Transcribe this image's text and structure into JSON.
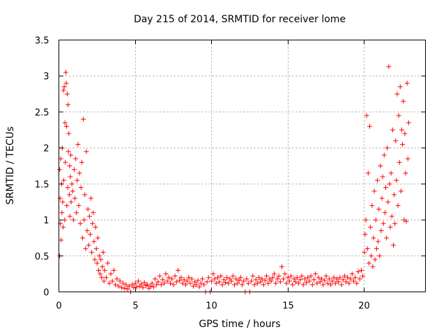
{
  "chart_data": {
    "type": "scatter",
    "title": "Day 215 of 2014, SRMTID for receiver lome",
    "xlabel": "GPS time / hours",
    "ylabel": "SRMTID / TECUs",
    "xlim": [
      0,
      24
    ],
    "ylim": [
      0,
      3.5
    ],
    "xticks": [
      0,
      5,
      10,
      15,
      20
    ],
    "xtick_labels": [
      "0",
      "5",
      "10",
      "15",
      "20"
    ],
    "yticks": [
      0,
      0.5,
      1,
      1.5,
      2,
      2.5,
      3,
      3.5
    ],
    "ytick_labels": [
      "0",
      "0.5",
      "1",
      "1.5",
      "2",
      "2.5",
      "3",
      "3.5"
    ],
    "grid": true,
    "marker": "+",
    "marker_color": "#ff0000",
    "series": [
      {
        "name": "SRMTID",
        "points": [
          [
            0.05,
            1.7
          ],
          [
            0.05,
            0.5
          ],
          [
            0.08,
            1.3
          ],
          [
            0.1,
            0.95
          ],
          [
            0.12,
            1.85
          ],
          [
            0.15,
            0.72
          ],
          [
            0.18,
            1.5
          ],
          [
            0.2,
            1.1
          ],
          [
            0.22,
            2.0
          ],
          [
            0.25,
            1.25
          ],
          [
            0.28,
            0.9
          ],
          [
            0.3,
            2.8
          ],
          [
            0.32,
            1.55
          ],
          [
            0.35,
            2.85
          ],
          [
            0.38,
            1.0
          ],
          [
            0.4,
            2.35
          ],
          [
            0.42,
            1.8
          ],
          [
            0.45,
            3.05
          ],
          [
            0.48,
            2.9
          ],
          [
            0.5,
            2.3
          ],
          [
            0.52,
            1.2
          ],
          [
            0.55,
            2.75
          ],
          [
            0.58,
            1.45
          ],
          [
            0.6,
            2.6
          ],
          [
            0.62,
            1.95
          ],
          [
            0.65,
            2.2
          ],
          [
            0.68,
            1.35
          ],
          [
            0.7,
            1.75
          ],
          [
            0.72,
            1.05
          ],
          [
            0.75,
            1.6
          ],
          [
            0.78,
            1.9
          ],
          [
            0.8,
            1.25
          ],
          [
            0.85,
            1.5
          ],
          [
            0.9,
            1.4
          ],
          [
            0.95,
            1.0
          ],
          [
            1.0,
            1.7
          ],
          [
            1.05,
            1.3
          ],
          [
            1.1,
            1.85
          ],
          [
            1.15,
            1.1
          ],
          [
            1.2,
            1.55
          ],
          [
            1.25,
            2.05
          ],
          [
            1.3,
            1.2
          ],
          [
            1.35,
            1.65
          ],
          [
            1.4,
            0.95
          ],
          [
            1.45,
            1.45
          ],
          [
            1.5,
            1.8
          ],
          [
            1.55,
            0.75
          ],
          [
            1.6,
            2.4
          ],
          [
            1.65,
            1.0
          ],
          [
            1.7,
            1.35
          ],
          [
            1.75,
            0.6
          ],
          [
            1.8,
            1.95
          ],
          [
            1.85,
            0.85
          ],
          [
            1.9,
            1.15
          ],
          [
            1.95,
            0.65
          ],
          [
            2.0,
            1.05
          ],
          [
            2.05,
            0.8
          ],
          [
            2.1,
            1.3
          ],
          [
            2.15,
            0.55
          ],
          [
            2.2,
            0.95
          ],
          [
            2.25,
            1.1
          ],
          [
            2.3,
            0.7
          ],
          [
            2.35,
            0.45
          ],
          [
            2.4,
            0.9
          ],
          [
            2.45,
            0.6
          ],
          [
            2.5,
            0.4
          ],
          [
            2.55,
            0.75
          ],
          [
            2.6,
            0.3
          ],
          [
            2.65,
            0.5
          ],
          [
            2.7,
            0.25
          ],
          [
            2.75,
            0.45
          ],
          [
            2.8,
            0.2
          ],
          [
            2.85,
            0.35
          ],
          [
            2.9,
            0.55
          ],
          [
            2.95,
            0.15
          ],
          [
            3.0,
            0.3
          ],
          [
            3.1,
            0.2
          ],
          [
            3.2,
            0.4
          ],
          [
            3.3,
            0.12
          ],
          [
            3.4,
            0.25
          ],
          [
            3.5,
            0.15
          ],
          [
            3.6,
            0.3
          ],
          [
            3.7,
            0.1
          ],
          [
            3.8,
            0.18
          ],
          [
            3.9,
            0.08
          ],
          [
            4.0,
            0.15
          ],
          [
            4.1,
            0.06
          ],
          [
            4.2,
            0.12
          ],
          [
            4.3,
            0.05
          ],
          [
            4.4,
            0.1
          ],
          [
            4.5,
            0.04
          ],
          [
            4.6,
            0.08
          ],
          [
            4.7,
            0.0
          ],
          [
            4.8,
            0.1
          ],
          [
            4.9,
            0.06
          ],
          [
            5.0,
            0.12
          ],
          [
            5.1,
            0.07
          ],
          [
            5.2,
            0.15
          ],
          [
            5.3,
            0.08
          ],
          [
            5.4,
            0.11
          ],
          [
            5.5,
            0.06
          ],
          [
            5.6,
            0.13
          ],
          [
            5.7,
            0.09
          ],
          [
            5.8,
            0.1
          ],
          [
            5.9,
            0.05
          ],
          [
            6.0,
            0.08
          ],
          [
            6.1,
            0.12
          ],
          [
            6.2,
            0.07
          ],
          [
            6.3,
            0.18
          ],
          [
            6.4,
            0.1
          ],
          [
            6.5,
            0.14
          ],
          [
            6.6,
            0.22
          ],
          [
            6.7,
            0.1
          ],
          [
            6.8,
            0.17
          ],
          [
            6.9,
            0.12
          ],
          [
            7.0,
            0.25
          ],
          [
            7.1,
            0.15
          ],
          [
            7.2,
            0.2
          ],
          [
            7.3,
            0.12
          ],
          [
            7.4,
            0.18
          ],
          [
            7.5,
            0.1
          ],
          [
            7.6,
            0.22
          ],
          [
            7.7,
            0.14
          ],
          [
            7.8,
            0.3
          ],
          [
            7.9,
            0.16
          ],
          [
            8.0,
            0.2
          ],
          [
            8.1,
            0.12
          ],
          [
            8.2,
            0.17
          ],
          [
            8.3,
            0.1
          ],
          [
            8.4,
            0.15
          ],
          [
            8.5,
            0.2
          ],
          [
            8.6,
            0.12
          ],
          [
            8.7,
            0.18
          ],
          [
            8.8,
            0.08
          ],
          [
            8.9,
            0.14
          ],
          [
            9.0,
            0.1
          ],
          [
            9.1,
            0.16
          ],
          [
            9.2,
            0.07
          ],
          [
            9.3,
            0.12
          ],
          [
            9.4,
            0.18
          ],
          [
            9.5,
            0.1
          ],
          [
            9.6,
            0.0
          ],
          [
            9.7,
            0.14
          ],
          [
            9.8,
            0.2
          ],
          [
            9.9,
            0.0
          ],
          [
            10.0,
            0.15
          ],
          [
            10.1,
            0.25
          ],
          [
            10.2,
            0.18
          ],
          [
            10.3,
            0.12
          ],
          [
            10.4,
            0.2
          ],
          [
            10.5,
            0.14
          ],
          [
            10.6,
            0.22
          ],
          [
            10.7,
            0.1
          ],
          [
            10.8,
            0.17
          ],
          [
            10.9,
            0.13
          ],
          [
            11.0,
            0.2
          ],
          [
            11.1,
            0.12
          ],
          [
            11.2,
            0.18
          ],
          [
            11.3,
            0.15
          ],
          [
            11.4,
            0.22
          ],
          [
            11.5,
            0.1
          ],
          [
            11.6,
            0.18
          ],
          [
            11.7,
            0.12
          ],
          [
            11.8,
            0.16
          ],
          [
            11.9,
            0.2
          ],
          [
            12.0,
            0.1
          ],
          [
            12.1,
            0.15
          ],
          [
            12.2,
            0.0
          ],
          [
            12.3,
            0.18
          ],
          [
            12.4,
            0.12
          ],
          [
            12.5,
            0.0
          ],
          [
            12.6,
            0.15
          ],
          [
            12.7,
            0.22
          ],
          [
            12.8,
            0.1
          ],
          [
            12.9,
            0.17
          ],
          [
            13.0,
            0.12
          ],
          [
            13.1,
            0.2
          ],
          [
            13.2,
            0.14
          ],
          [
            13.3,
            0.18
          ],
          [
            13.4,
            0.1
          ],
          [
            13.5,
            0.16
          ],
          [
            13.6,
            0.22
          ],
          [
            13.7,
            0.12
          ],
          [
            13.8,
            0.18
          ],
          [
            13.9,
            0.15
          ],
          [
            14.0,
            0.2
          ],
          [
            14.1,
            0.25
          ],
          [
            14.2,
            0.12
          ],
          [
            14.3,
            0.18
          ],
          [
            14.4,
            0.22
          ],
          [
            14.5,
            0.14
          ],
          [
            14.6,
            0.35
          ],
          [
            14.7,
            0.18
          ],
          [
            14.8,
            0.25
          ],
          [
            14.9,
            0.12
          ],
          [
            15.0,
            0.2
          ],
          [
            15.1,
            0.15
          ],
          [
            15.2,
            0.22
          ],
          [
            15.3,
            0.1
          ],
          [
            15.4,
            0.18
          ],
          [
            15.5,
            0.14
          ],
          [
            15.6,
            0.2
          ],
          [
            15.7,
            0.12
          ],
          [
            15.8,
            0.17
          ],
          [
            15.9,
            0.22
          ],
          [
            16.0,
            0.1
          ],
          [
            16.1,
            0.18
          ],
          [
            16.2,
            0.13
          ],
          [
            16.3,
            0.2
          ],
          [
            16.4,
            0.15
          ],
          [
            16.5,
            0.22
          ],
          [
            16.6,
            0.1
          ],
          [
            16.7,
            0.17
          ],
          [
            16.8,
            0.25
          ],
          [
            16.9,
            0.12
          ],
          [
            17.0,
            0.2
          ],
          [
            17.1,
            0.14
          ],
          [
            17.2,
            0.18
          ],
          [
            17.3,
            0.1
          ],
          [
            17.4,
            0.16
          ],
          [
            17.5,
            0.22
          ],
          [
            17.6,
            0.12
          ],
          [
            17.7,
            0.18
          ],
          [
            17.8,
            0.1
          ],
          [
            17.9,
            0.15
          ],
          [
            18.0,
            0.2
          ],
          [
            18.1,
            0.12
          ],
          [
            18.2,
            0.18
          ],
          [
            18.3,
            0.14
          ],
          [
            18.4,
            0.2
          ],
          [
            18.5,
            0.1
          ],
          [
            18.6,
            0.17
          ],
          [
            18.7,
            0.22
          ],
          [
            18.8,
            0.14
          ],
          [
            18.9,
            0.2
          ],
          [
            19.0,
            0.12
          ],
          [
            19.1,
            0.18
          ],
          [
            19.2,
            0.25
          ],
          [
            19.3,
            0.15
          ],
          [
            19.4,
            0.2
          ],
          [
            19.5,
            0.12
          ],
          [
            19.6,
            0.28
          ],
          [
            19.7,
            0.18
          ],
          [
            19.8,
            0.3
          ],
          [
            19.9,
            0.22
          ],
          [
            20.0,
            0.55
          ],
          [
            20.05,
            0.8
          ],
          [
            20.1,
            1.0
          ],
          [
            20.15,
            2.45
          ],
          [
            20.2,
            0.6
          ],
          [
            20.25,
            1.65
          ],
          [
            20.3,
            0.4
          ],
          [
            20.35,
            2.3
          ],
          [
            20.4,
            0.9
          ],
          [
            20.45,
            0.5
          ],
          [
            20.5,
            1.2
          ],
          [
            20.55,
            0.35
          ],
          [
            20.6,
            0.75
          ],
          [
            20.65,
            1.4
          ],
          [
            20.7,
            0.45
          ],
          [
            20.75,
            1.0
          ],
          [
            20.8,
            0.6
          ],
          [
            20.85,
            1.55
          ],
          [
            20.9,
            0.7
          ],
          [
            20.95,
            1.15
          ],
          [
            21.0,
            0.5
          ],
          [
            21.05,
            1.75
          ],
          [
            21.1,
            0.85
          ],
          [
            21.15,
            1.3
          ],
          [
            21.2,
            1.6
          ],
          [
            21.25,
            0.95
          ],
          [
            21.3,
            1.9
          ],
          [
            21.35,
            1.1
          ],
          [
            21.4,
            1.45
          ],
          [
            21.45,
            0.75
          ],
          [
            21.5,
            2.0
          ],
          [
            21.55,
            1.25
          ],
          [
            21.6,
            3.13
          ],
          [
            21.65,
            1.5
          ],
          [
            21.7,
            0.9
          ],
          [
            21.75,
            1.65
          ],
          [
            21.8,
            1.05
          ],
          [
            21.85,
            2.25
          ],
          [
            21.9,
            0.65
          ],
          [
            21.95,
            1.35
          ],
          [
            22.0,
            0.95
          ],
          [
            22.05,
            2.1
          ],
          [
            22.1,
            1.55
          ],
          [
            22.15,
            2.75
          ],
          [
            22.2,
            1.2
          ],
          [
            22.25,
            2.45
          ],
          [
            22.3,
            1.8
          ],
          [
            22.35,
            2.85
          ],
          [
            22.4,
            1.4
          ],
          [
            22.45,
            2.25
          ],
          [
            22.5,
            2.05
          ],
          [
            22.55,
            2.65
          ],
          [
            22.6,
            1.0
          ],
          [
            22.65,
            2.2
          ],
          [
            22.7,
            1.65
          ],
          [
            22.75,
            0.98
          ],
          [
            22.8,
            2.9
          ],
          [
            22.85,
            1.85
          ],
          [
            22.9,
            2.35
          ]
        ]
      }
    ]
  }
}
